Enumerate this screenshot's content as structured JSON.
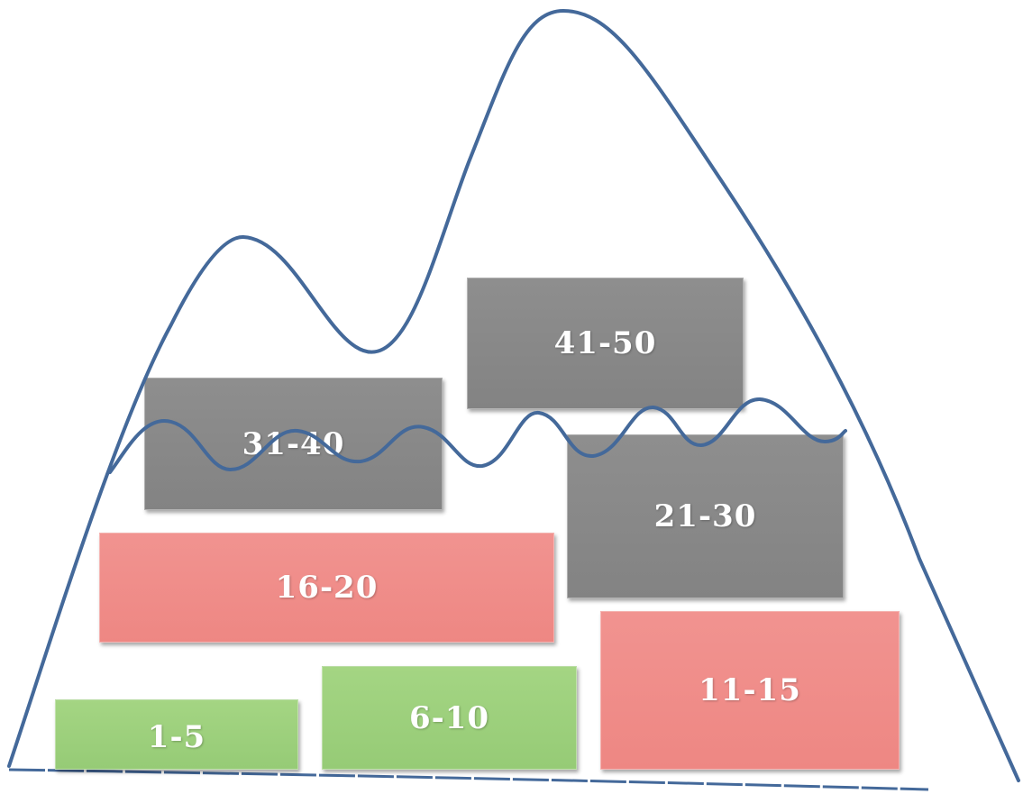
{
  "colors": {
    "line": "#44699a",
    "gray_block": "#888888",
    "red_block": "#f08c88",
    "green_block": "#9ccf7c"
  },
  "blocks": {
    "b41_50": "41-50",
    "b31_40": "31-40",
    "b21_30": "21-30",
    "b16_20": "16-20",
    "b11_15": "11-15",
    "b6_10": "6-10",
    "b1_5": "1-5"
  }
}
